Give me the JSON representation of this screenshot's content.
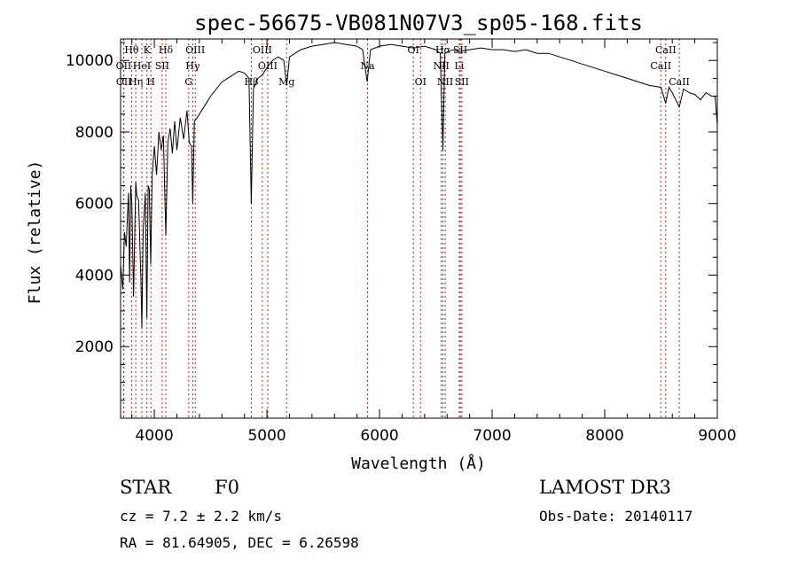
{
  "chart_data": {
    "type": "line",
    "title": "spec-56675-VB081N07V3_sp05-168.fits",
    "xlabel": "Wavelength (Å)",
    "ylabel": "Flux (relative)",
    "xlim": [
      3700,
      9000
    ],
    "ylim": [
      0,
      10600
    ],
    "x_ticks": [
      4000,
      5000,
      6000,
      7000,
      8000,
      9000
    ],
    "y_ticks": [
      2000,
      4000,
      6000,
      8000,
      10000
    ],
    "series": [
      {
        "name": "flux",
        "x": [
          3700,
          3720,
          3735,
          3750,
          3770,
          3780,
          3790,
          3800,
          3815,
          3830,
          3835,
          3845,
          3860,
          3880,
          3889,
          3900,
          3920,
          3933,
          3945,
          3955,
          3968,
          3980,
          4000,
          4020,
          4040,
          4060,
          4080,
          4102,
          4120,
          4140,
          4160,
          4180,
          4200,
          4230,
          4260,
          4290,
          4310,
          4330,
          4341,
          4355,
          4380,
          4420,
          4460,
          4500,
          4550,
          4600,
          4650,
          4700,
          4750,
          4800,
          4840,
          4861,
          4880,
          4920,
          4960,
          5000,
          5050,
          5100,
          5150,
          5175,
          5200,
          5300,
          5400,
          5500,
          5600,
          5700,
          5800,
          5850,
          5890,
          5920,
          6000,
          6100,
          6200,
          6300,
          6400,
          6500,
          6540,
          6563,
          6580,
          6650,
          6700,
          6800,
          6900,
          7000,
          7100,
          7200,
          7300,
          7400,
          7500,
          7600,
          7700,
          7800,
          7900,
          8000,
          8100,
          8200,
          8300,
          8400,
          8500,
          8542,
          8570,
          8600,
          8662,
          8700,
          8750,
          8800,
          8850,
          8900,
          8950,
          8980,
          9000
        ],
        "y": [
          4300,
          3600,
          5200,
          4800,
          6300,
          3800,
          6500,
          6000,
          3400,
          5800,
          6600,
          6200,
          6100,
          3900,
          2500,
          5200,
          6300,
          2800,
          6500,
          6400,
          4300,
          6800,
          7600,
          6800,
          8000,
          7500,
          7900,
          5100,
          7700,
          8100,
          7400,
          8300,
          7500,
          8400,
          7800,
          8600,
          7700,
          7600,
          6000,
          8300,
          8400,
          8600,
          8800,
          9000,
          9200,
          9400,
          9500,
          9600,
          9700,
          9650,
          9500,
          6000,
          9200,
          9500,
          9600,
          9800,
          10000,
          10100,
          10000,
          9300,
          10100,
          10300,
          10400,
          10450,
          10500,
          10450,
          10400,
          10300,
          9400,
          10300,
          10400,
          10450,
          10400,
          10350,
          10400,
          10300,
          10200,
          7500,
          10200,
          10300,
          10250,
          10300,
          10350,
          10300,
          10300,
          10250,
          10300,
          10200,
          10200,
          10100,
          10000,
          9900,
          9800,
          9700,
          9600,
          9500,
          9400,
          9300,
          9250,
          8800,
          9250,
          9100,
          8700,
          9200,
          9100,
          9050,
          8900,
          9100,
          9000,
          9000,
          8200
        ]
      }
    ],
    "spectral_lines": [
      {
        "label": "Hθ",
        "x": 3798,
        "row": 1
      },
      {
        "label": "OII",
        "x": 3727,
        "row": 2
      },
      {
        "label": "OII",
        "x": 3729,
        "row": 3
      },
      {
        "label": "Hη",
        "x": 3835,
        "row": 3
      },
      {
        "label": "HeI",
        "x": 3889,
        "row": 2
      },
      {
        "label": "K",
        "x": 3934,
        "row": 1
      },
      {
        "label": "SII",
        "x": 4069,
        "row": 2
      },
      {
        "label": "H",
        "x": 3969,
        "row": 3
      },
      {
        "label": "Hδ",
        "x": 4102,
        "row": 1
      },
      {
        "label": "OIII",
        "x": 4363,
        "row": 1
      },
      {
        "label": "Hγ",
        "x": 4341,
        "row": 2
      },
      {
        "label": "G",
        "x": 4305,
        "row": 3
      },
      {
        "label": "Hβ",
        "x": 4861,
        "row": 3
      },
      {
        "label": "OIII",
        "x": 4959,
        "row": 1
      },
      {
        "label": "OIII",
        "x": 5007,
        "row": 2
      },
      {
        "label": "Mg",
        "x": 5175,
        "row": 3
      },
      {
        "label": "Na",
        "x": 5893,
        "row": 2
      },
      {
        "label": "OI",
        "x": 6300,
        "row": 1
      },
      {
        "label": "OI",
        "x": 6364,
        "row": 3
      },
      {
        "label": "NII",
        "x": 6548,
        "row": 2
      },
      {
        "label": "Hα",
        "x": 6563,
        "row": 1
      },
      {
        "label": "NII",
        "x": 6583,
        "row": 3
      },
      {
        "label": "SII",
        "x": 6717,
        "row": 1
      },
      {
        "label": "SII",
        "x": 6731,
        "row": 3
      },
      {
        "label": "Li",
        "x": 6708,
        "row": 2
      },
      {
        "label": "CaII",
        "x": 8498,
        "row": 2
      },
      {
        "label": "CaII",
        "x": 8542,
        "row": 1
      },
      {
        "label": "CaII",
        "x": 8662,
        "row": 3
      }
    ]
  },
  "info": {
    "object_type": "STAR",
    "subclass": "F0",
    "redshift": "cz = 7.2 ± 2.2 km/s",
    "coords": "RA =  81.64905, DEC =   6.26598",
    "survey": "LAMOST DR3",
    "obs_date": "Obs-Date: 20140117"
  },
  "colors": {
    "line": "#000000",
    "marker": "#b22222"
  }
}
